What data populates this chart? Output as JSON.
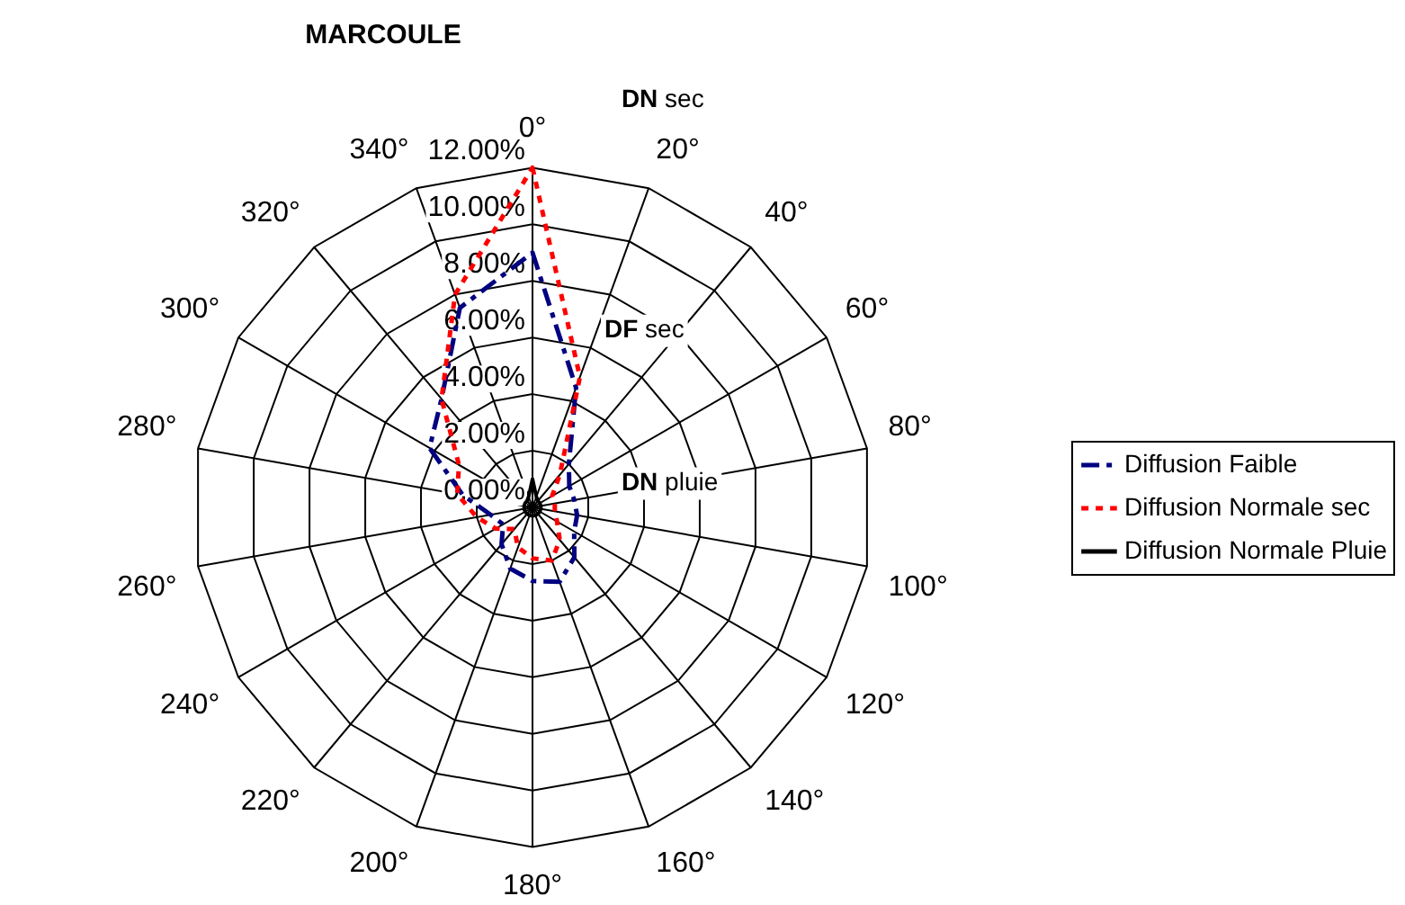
{
  "chart_data": {
    "type": "radar",
    "title": "MARCOULE",
    "categories": [
      "0°",
      "20°",
      "40°",
      "60°",
      "80°",
      "100°",
      "120°",
      "140°",
      "160°",
      "180°",
      "200°",
      "220°",
      "240°",
      "260°",
      "280°",
      "300°",
      "320°",
      "340°"
    ],
    "series": [
      {
        "name": "Diffusion Faible",
        "color": "#000080",
        "line_style": "dashed",
        "values": [
          9,
          4.5,
          2,
          1.5,
          1.5,
          1.6,
          1.7,
          2.3,
          2.8,
          2.6,
          2.3,
          1.7,
          1.2,
          1.5,
          2.5,
          4.2,
          5,
          7.5
        ]
      },
      {
        "name": "Diffusion Normale sec",
        "color": "#ff0000",
        "line_style": "dotted",
        "values": [
          12,
          4.9,
          1.5,
          0.8,
          0.8,
          0.8,
          1,
          1.5,
          2,
          1.8,
          1.5,
          1,
          1.5,
          2,
          2.7,
          3,
          5,
          8
        ]
      },
      {
        "name": "Diffusion Normale Pluie",
        "color": "#000000",
        "line_style": "solid",
        "values": [
          1,
          0.4,
          0.3,
          0.3,
          0.3,
          0.3,
          0.3,
          0.3,
          0.3,
          0.3,
          0.3,
          0.3,
          0.3,
          0.3,
          0.3,
          0.3,
          0.3,
          0.4
        ]
      }
    ],
    "ylim": [
      0,
      12
    ],
    "yticks": [
      {
        "value": 0,
        "label": "0.00%"
      },
      {
        "value": 2,
        "label": "2.00%"
      },
      {
        "value": 4,
        "label": "4.00%"
      },
      {
        "value": 6,
        "label": "6.00%"
      },
      {
        "value": 8,
        "label": "8.00%"
      },
      {
        "value": 10,
        "label": "10.00%"
      },
      {
        "value": 12,
        "label": "12.00%"
      }
    ],
    "grid": true,
    "legend": "right",
    "marker": "none",
    "annotations": [
      "DN sec",
      "DF sec",
      "DN pluie"
    ]
  }
}
